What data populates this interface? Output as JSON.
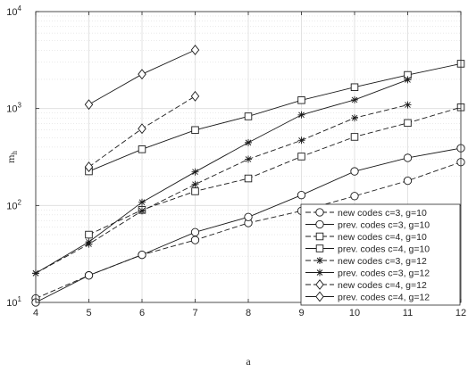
{
  "chart_data": {
    "type": "line",
    "title": "",
    "xlabel": "a",
    "ylabel": "m",
    "ylabel_subscript": "h",
    "xlim": [
      4,
      12
    ],
    "ylim": [
      10,
      10000
    ],
    "yscale": "log",
    "grid": true,
    "minor_grid": true,
    "legend_position": "bottom-right",
    "x_ticks": [
      "4",
      "5",
      "6",
      "7",
      "8",
      "9",
      "10",
      "11",
      "12"
    ],
    "y_ticks": [
      {
        "base": "10",
        "exp": "1",
        "value": 10
      },
      {
        "base": "10",
        "exp": "2",
        "value": 100
      },
      {
        "base": "10",
        "exp": "3",
        "value": 1000
      },
      {
        "base": "10",
        "exp": "4",
        "value": 10000
      }
    ],
    "series": [
      {
        "name": "new codes c=3, g=10",
        "marker": "circle",
        "dash": true,
        "x": [
          4,
          5,
          6,
          7,
          8,
          9,
          10,
          11,
          12
        ],
        "y": [
          11,
          19,
          31,
          44,
          66,
          88,
          125,
          180,
          280
        ]
      },
      {
        "name": "prev. codes c=3, g=10",
        "marker": "circle",
        "dash": false,
        "x": [
          4,
          5,
          6,
          7,
          8,
          9,
          10,
          11,
          12
        ],
        "y": [
          10,
          19,
          31,
          53,
          76,
          128,
          225,
          310,
          390
        ]
      },
      {
        "name": "new codes c=4, g=10",
        "marker": "square",
        "dash": true,
        "x": [
          5,
          6,
          7,
          8,
          9,
          10,
          11,
          12
        ],
        "y": [
          50,
          90,
          140,
          190,
          320,
          510,
          710,
          1030
        ]
      },
      {
        "name": "prev. codes c=4, g=10",
        "marker": "square",
        "dash": false,
        "x": [
          5,
          6,
          7,
          8,
          9,
          10,
          11,
          12
        ],
        "y": [
          225,
          380,
          600,
          830,
          1220,
          1660,
          2220,
          2900
        ]
      },
      {
        "name": "new codes c=3, g=12",
        "marker": "star",
        "dash": true,
        "x": [
          4,
          5,
          6,
          7,
          8,
          9,
          10,
          11
        ],
        "y": [
          20,
          40,
          88,
          165,
          300,
          470,
          800,
          1090
        ]
      },
      {
        "name": "prev. codes c=3, g=12",
        "marker": "star",
        "dash": false,
        "x": [
          4,
          5,
          6,
          7,
          8,
          9,
          10,
          11
        ],
        "y": [
          20,
          42,
          108,
          222,
          445,
          860,
          1230,
          1980
        ]
      },
      {
        "name": "new codes c=4, g=12",
        "marker": "diamond",
        "dash": true,
        "x": [
          5,
          6,
          7
        ],
        "y": [
          250,
          620,
          1340
        ]
      },
      {
        "name": "prev. codes c=4, g=12",
        "marker": "diamond",
        "dash": false,
        "x": [
          5,
          6,
          7
        ],
        "y": [
          1100,
          2260,
          4020
        ]
      }
    ]
  }
}
